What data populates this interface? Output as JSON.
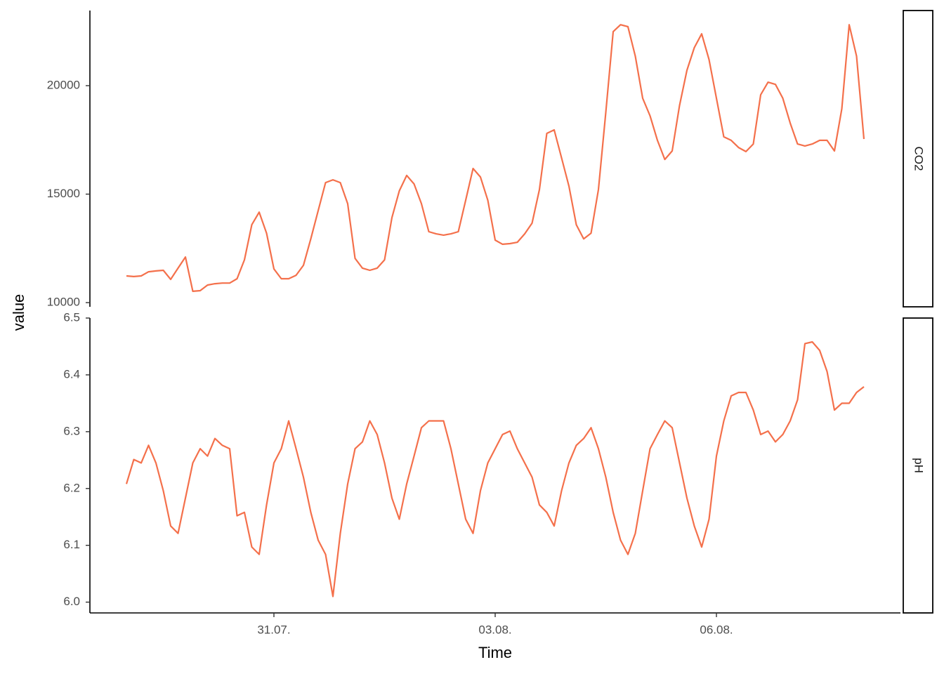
{
  "chart_data": [
    {
      "type": "line",
      "title": "CO2",
      "ylabel": "value",
      "color": "#f4704b",
      "x": [
        29.0,
        29.1,
        29.2,
        29.3,
        29.4,
        29.5,
        29.6,
        29.7,
        29.8,
        29.9,
        30.0,
        30.1,
        30.2,
        30.3,
        30.4,
        30.5,
        30.6,
        30.7,
        30.8,
        30.9,
        31.0,
        31.1,
        31.2,
        31.3,
        31.4,
        31.5,
        31.6,
        31.7,
        31.8,
        31.9,
        32.0,
        32.1,
        32.2,
        32.3,
        32.4,
        32.5,
        32.6,
        32.7,
        32.8,
        32.9,
        33.0,
        33.1,
        33.2,
        33.3,
        33.4,
        33.5,
        33.6,
        33.7,
        33.8,
        33.9,
        34.0,
        34.1,
        34.2,
        34.3,
        34.4,
        34.5,
        34.6,
        34.7,
        34.8,
        34.9,
        35.0,
        35.1,
        35.2,
        35.3,
        35.4,
        35.5,
        35.6,
        35.7,
        35.8,
        35.9,
        36.0,
        36.1,
        36.2,
        36.3,
        36.4,
        36.5,
        36.6,
        36.7,
        36.8,
        36.9,
        37.0,
        37.1,
        37.2,
        37.3,
        37.4,
        37.5,
        37.6,
        37.7,
        37.8,
        37.9,
        38.0,
        38.1,
        38.2,
        38.3,
        38.4,
        38.5,
        38.6,
        38.7,
        38.8,
        38.9,
        39.0
      ],
      "values": [
        11230,
        11200,
        11230,
        11420,
        11460,
        11490,
        11070,
        11590,
        12100,
        10520,
        10550,
        10810,
        10870,
        10900,
        10900,
        11100,
        11970,
        13590,
        14170,
        13200,
        11550,
        11100,
        11100,
        11260,
        11720,
        12940,
        14240,
        15530,
        15660,
        15530,
        14560,
        12040,
        11590,
        11490,
        11590,
        11970,
        13920,
        15150,
        15860,
        15470,
        14560,
        13270,
        13170,
        13110,
        13170,
        13270,
        14720,
        16180,
        15790,
        14720,
        12880,
        12690,
        12720,
        12780,
        13170,
        13660,
        15210,
        17800,
        17960,
        16670,
        15370,
        13590,
        12940,
        13200,
        15210,
        18770,
        22490,
        22810,
        22720,
        21360,
        19420,
        18610,
        17480,
        16600,
        16990,
        19090,
        20710,
        21750,
        22390,
        21200,
        19420,
        17640,
        17480,
        17150,
        16960,
        17310,
        19580,
        20160,
        20060,
        19420,
        18280,
        17310,
        17220,
        17310,
        17480,
        17480,
        16990,
        18930,
        22810,
        21360,
        17540
      ],
      "xlim": [
        28.505,
        39.495
      ],
      "ylim": [
        9806,
        23463
      ],
      "yticks": [
        10000,
        15000,
        20000
      ]
    },
    {
      "type": "line",
      "title": "pH",
      "xlabel": "Time",
      "color": "#f4704b",
      "x": [
        29.0,
        29.1,
        29.2,
        29.3,
        29.4,
        29.5,
        29.6,
        29.7,
        29.8,
        29.9,
        30.0,
        30.1,
        30.2,
        30.3,
        30.4,
        30.5,
        30.6,
        30.7,
        30.8,
        30.9,
        31.0,
        31.1,
        31.2,
        31.3,
        31.4,
        31.5,
        31.6,
        31.7,
        31.8,
        31.9,
        32.0,
        32.1,
        32.2,
        32.3,
        32.4,
        32.5,
        32.6,
        32.7,
        32.8,
        32.9,
        33.0,
        33.1,
        33.2,
        33.3,
        33.4,
        33.5,
        33.6,
        33.7,
        33.8,
        33.9,
        34.0,
        34.1,
        34.2,
        34.3,
        34.4,
        34.5,
        34.6,
        34.7,
        34.8,
        34.9,
        35.0,
        35.1,
        35.2,
        35.3,
        35.4,
        35.5,
        35.6,
        35.7,
        35.8,
        35.9,
        36.0,
        36.1,
        36.2,
        36.3,
        36.4,
        36.5,
        36.6,
        36.7,
        36.8,
        36.9,
        37.0,
        37.1,
        37.2,
        37.3,
        37.4,
        37.5,
        37.6,
        37.7,
        37.8,
        37.9,
        38.0,
        38.1,
        38.2,
        38.3,
        38.4,
        38.5,
        38.6,
        38.7,
        38.8,
        38.9,
        39.0
      ],
      "values": [
        6.208,
        6.251,
        6.245,
        6.276,
        6.245,
        6.196,
        6.134,
        6.121,
        6.183,
        6.245,
        6.27,
        6.257,
        6.288,
        6.276,
        6.27,
        6.152,
        6.158,
        6.097,
        6.084,
        6.171,
        6.245,
        6.27,
        6.319,
        6.27,
        6.22,
        6.158,
        6.109,
        6.084,
        6.01,
        6.121,
        6.208,
        6.27,
        6.282,
        6.319,
        6.295,
        6.245,
        6.183,
        6.146,
        6.208,
        6.257,
        6.307,
        6.319,
        6.319,
        6.319,
        6.27,
        6.208,
        6.146,
        6.121,
        6.196,
        6.245,
        6.27,
        6.295,
        6.301,
        6.27,
        6.245,
        6.22,
        6.171,
        6.158,
        6.134,
        6.196,
        6.245,
        6.276,
        6.288,
        6.307,
        6.27,
        6.22,
        6.158,
        6.109,
        6.084,
        6.121,
        6.196,
        6.27,
        6.295,
        6.319,
        6.307,
        6.245,
        6.183,
        6.134,
        6.097,
        6.146,
        6.257,
        6.319,
        6.363,
        6.369,
        6.369,
        6.338,
        6.295,
        6.301,
        6.282,
        6.295,
        6.319,
        6.356,
        6.455,
        6.458,
        6.443,
        6.406,
        6.338,
        6.35,
        6.35,
        6.369,
        6.379
      ],
      "xlim": [
        28.505,
        39.495
      ],
      "xticks": [
        {
          "value": 31,
          "label": "31.07."
        },
        {
          "value": 34,
          "label": "03.08."
        },
        {
          "value": 37,
          "label": "06.08."
        }
      ],
      "ylim": [
        5.981,
        6.5
      ],
      "yticks": [
        {
          "value": 6,
          "label": "6.0"
        },
        6.1,
        6.2,
        6.3,
        6.4,
        6.5
      ]
    }
  ]
}
